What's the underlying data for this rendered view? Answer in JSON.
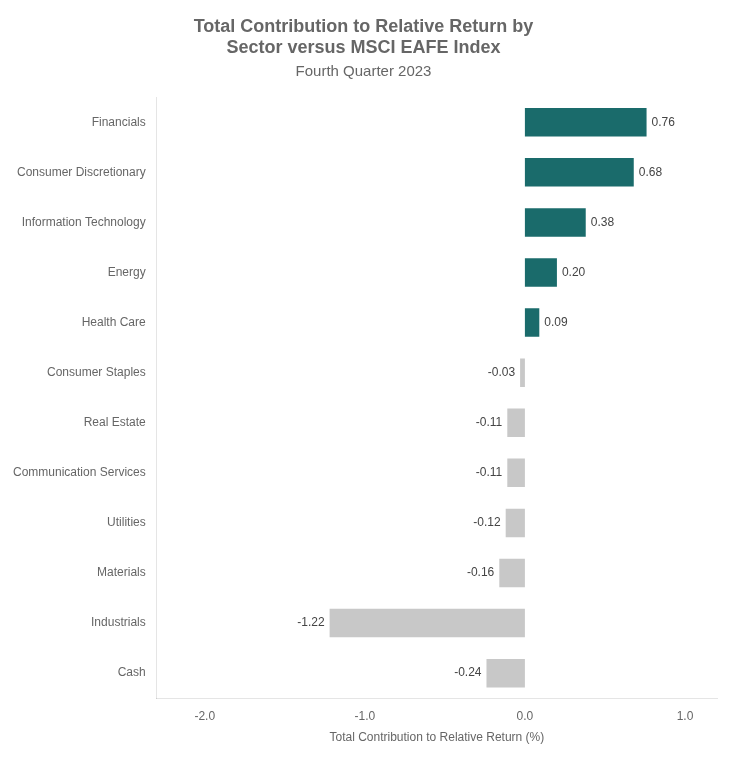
{
  "chart_data": {
    "type": "bar",
    "orientation": "horizontal",
    "title": [
      "Total Contribution to Relative Return by",
      "Sector versus MSCI EAFE Index"
    ],
    "subtitle": "Fourth Quarter 2023",
    "xlabel": "Total Contribution to Relative Return (%)",
    "categories": [
      "Financials",
      "Consumer Discretionary",
      "Information Technology",
      "Energy",
      "Health Care",
      "Consumer Staples",
      "Real Estate",
      "Communication Services",
      "Utilities",
      "Materials",
      "Industrials",
      "Cash"
    ],
    "values": [
      0.76,
      0.68,
      0.38,
      0.2,
      0.09,
      -0.03,
      -0.11,
      -0.11,
      -0.12,
      -0.16,
      -1.22,
      -0.24
    ],
    "value_labels": [
      "0.76",
      "0.68",
      "0.38",
      "0.20",
      "0.09",
      "-0.03",
      "-0.11",
      "-0.11",
      "-0.12",
      "-0.16",
      "-1.22",
      "-0.24"
    ],
    "colors": [
      "#1a6b6b",
      "#1a6b6b",
      "#1a6b6b",
      "#1a6b6b",
      "#1a6b6b",
      "#c8c8c8",
      "#c8c8c8",
      "#c8c8c8",
      "#c8c8c8",
      "#c8c8c8",
      "#c8c8c8",
      "#c8c8c8"
    ],
    "xlim": [
      -2.3,
      1.2
    ],
    "xticks": [
      {
        "value": -2.0,
        "label": "-2.0"
      },
      {
        "value": -1.0,
        "label": "-1.0"
      },
      {
        "value": 0.0,
        "label": "0.0"
      },
      {
        "value": 1.0,
        "label": "1.0"
      }
    ],
    "grid": false,
    "data_labels": true
  }
}
